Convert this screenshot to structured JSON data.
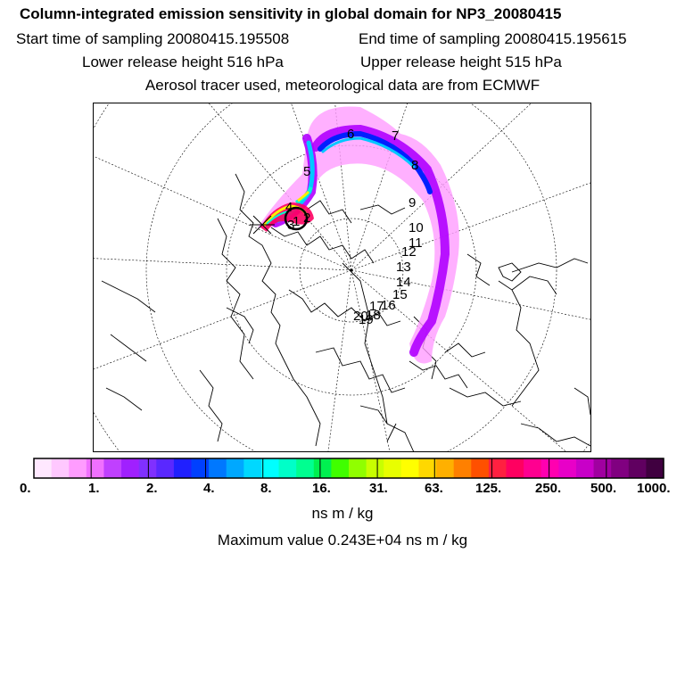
{
  "header": {
    "title": "Column-integrated emission sensitivity in global domain for NP3_20080415",
    "start_time": "Start time of sampling 20080415.195508",
    "end_time": "End time of sampling 20080415.195615",
    "lower_height": "Lower release height  516 hPa",
    "upper_height": "Upper release height  515 hPa",
    "tracer_note": "Aerosol tracer used, meteorological data are from ECMWF"
  },
  "map": {
    "projection": "north-polar-stereographic",
    "trajectory_labels": [
      "1",
      "2",
      "3",
      "4",
      "5",
      "6",
      "7",
      "8",
      "9",
      "10",
      "11",
      "12",
      "13",
      "14",
      "15",
      "16",
      "17",
      "18",
      "19",
      "20"
    ],
    "plume_colors": [
      "#ff00ff",
      "#b000ff",
      "#0020ff",
      "#00c8ff",
      "#00ffd0",
      "#ffee00",
      "#ff0060"
    ]
  },
  "colorbar": {
    "tick_labels": [
      "0.",
      "1.",
      "2.",
      "4.",
      "8.",
      "16.",
      "31.",
      "63.",
      "125.",
      "250.",
      "500.",
      "1000."
    ],
    "colors": [
      "#ffe8ff",
      "#ffc8ff",
      "#ff9cff",
      "#f070ff",
      "#c040ff",
      "#a020ff",
      "#8030ff",
      "#5a28ff",
      "#2020ff",
      "#0040ff",
      "#0078ff",
      "#00a8ff",
      "#00d8ff",
      "#00ffff",
      "#00ffc8",
      "#00ff90",
      "#00f050",
      "#40ff00",
      "#90ff00",
      "#c8ff00",
      "#e8ff00",
      "#ffff00",
      "#ffd800",
      "#ffb000",
      "#ff8000",
      "#ff5000",
      "#ff2040",
      "#ff0060",
      "#ff0090",
      "#ff00b0",
      "#e800c8",
      "#c800c8",
      "#a000a0",
      "#800080",
      "#600060",
      "#400040"
    ],
    "units": "ns m / kg"
  },
  "max_value": "Maximum value  0.243E+04 ns m / kg"
}
